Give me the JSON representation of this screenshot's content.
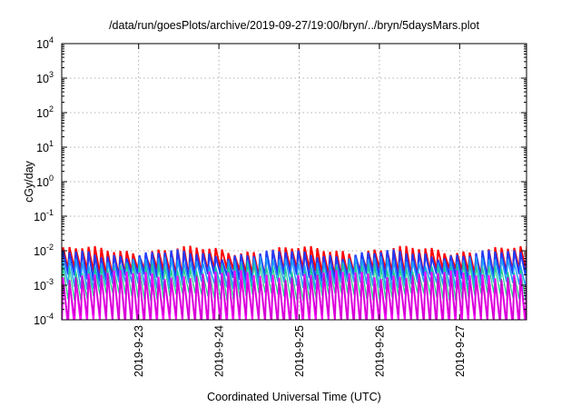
{
  "chart_data": {
    "type": "line",
    "title": "/data/run/goesPlots/archive/2019-09-27/19:00/bryn/../bryn/5daysMars.plot",
    "xlabel": "Coordinated Universal Time (UTC)",
    "ylabel": "cGy/day",
    "yscale": "log",
    "ylim": [
      0.0001,
      10000
    ],
    "xlim": [
      "2019-09-22 01:00",
      "2019-09-27 20:00"
    ],
    "grid": true,
    "ytick_labels": [
      {
        "base": "10",
        "exp": "-4"
      },
      {
        "base": "10",
        "exp": "-3"
      },
      {
        "base": "10",
        "exp": "-2"
      },
      {
        "base": "10",
        "exp": "-1"
      },
      {
        "base": "10",
        "exp": "0"
      },
      {
        "base": "10",
        "exp": "1"
      },
      {
        "base": "10",
        "exp": "2"
      },
      {
        "base": "10",
        "exp": "3"
      },
      {
        "base": "10",
        "exp": "4"
      }
    ],
    "xticks": [
      {
        "value": "2019-09-23 00:00",
        "label": "2019-9-23"
      },
      {
        "value": "2019-09-24 00:00",
        "label": "2019-9-24"
      },
      {
        "value": "2019-09-25 00:00",
        "label": "2019-9-25"
      },
      {
        "value": "2019-09-26 00:00",
        "label": "2019-9-26"
      },
      {
        "value": "2019-09-27 00:00",
        "label": "2019-9-27"
      }
    ],
    "period_hours": 1.9,
    "series": [
      {
        "color": "#ff0000",
        "peak": 0.0105,
        "trough": 0.0024,
        "width": 2
      },
      {
        "color": "#1f3cff",
        "peak": 0.0082,
        "trough": 0.0017,
        "width": 2
      },
      {
        "color": "#1fa0ff",
        "peak": 0.0052,
        "trough": 0.001,
        "width": 1.5
      },
      {
        "color": "#22cc88",
        "peak": 0.0034,
        "trough": 0.00048,
        "width": 1.2
      },
      {
        "color": "#ff00ff",
        "peak": 0.0021,
        "trough": 8e-05,
        "width": 2
      },
      {
        "color": "#cc00cc",
        "peak": 0.0016,
        "trough": 0.00011,
        "width": 1.2
      }
    ]
  }
}
